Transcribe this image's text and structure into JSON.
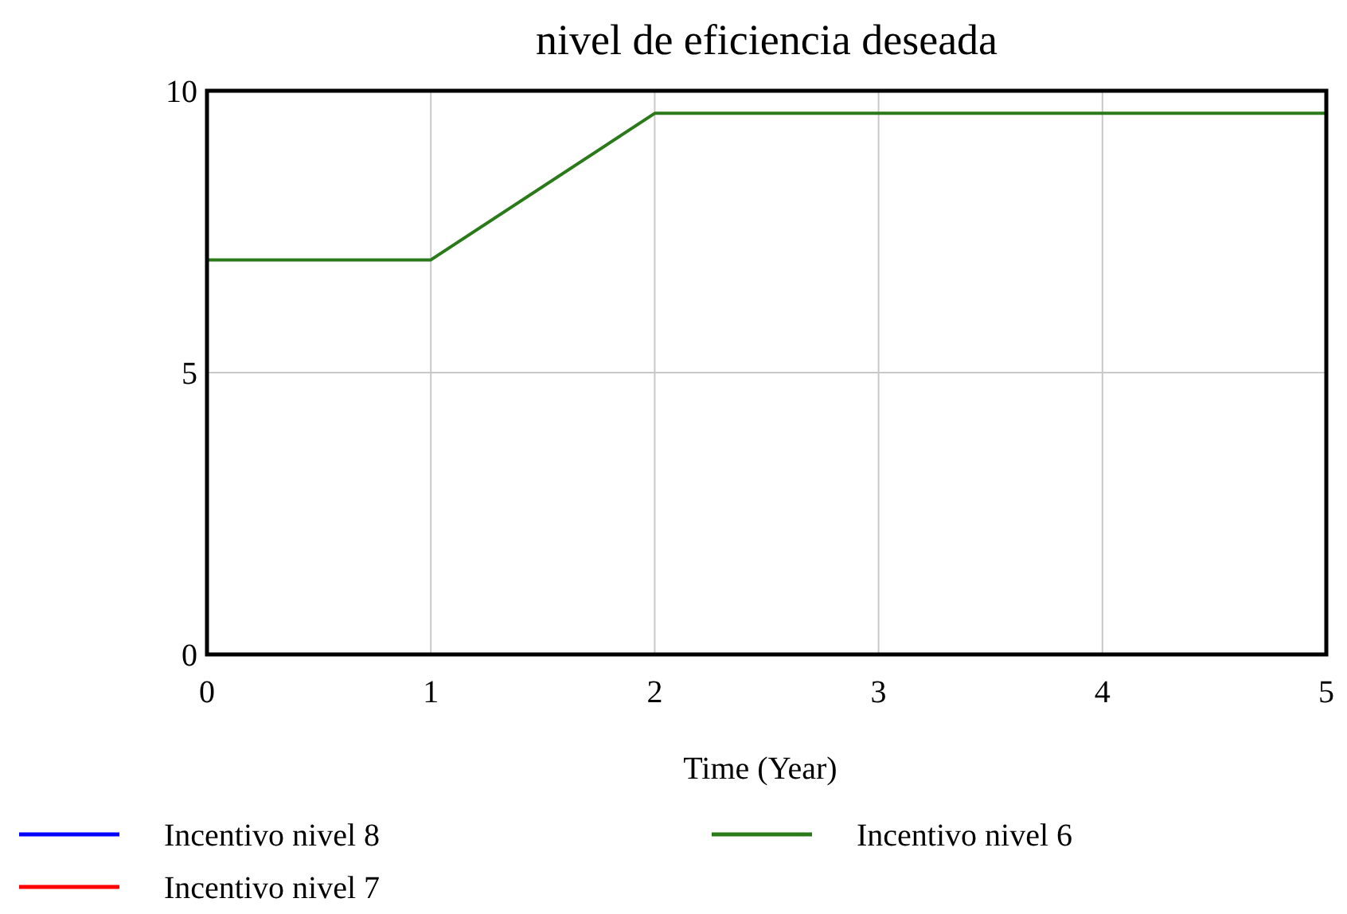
{
  "chart_data": {
    "type": "line",
    "title": "nivel de eficiencia deseada",
    "xlabel": "Time (Year)",
    "x": [
      0,
      1,
      2,
      3,
      4,
      5
    ],
    "series": [
      {
        "name": "Incentivo nivel 8",
        "color": "#0000ff",
        "values": [
          null,
          null,
          null,
          null,
          null,
          null
        ]
      },
      {
        "name": "Incentivo nivel 7",
        "color": "#ff0000",
        "values": [
          null,
          null,
          null,
          null,
          null,
          null
        ]
      },
      {
        "name": "Incentivo nivel 6",
        "color": "#2a7a1a",
        "values": [
          7,
          7,
          9.6,
          9.6,
          9.6,
          9.6
        ]
      }
    ],
    "xlim": [
      0,
      5
    ],
    "xticks": [
      0,
      1,
      2,
      3,
      4,
      5
    ],
    "ylim": [
      0,
      10
    ],
    "yticks": [
      0,
      5,
      10
    ],
    "grid": true,
    "legend": "bottom",
    "marker": "none",
    "line_style": "solid"
  }
}
